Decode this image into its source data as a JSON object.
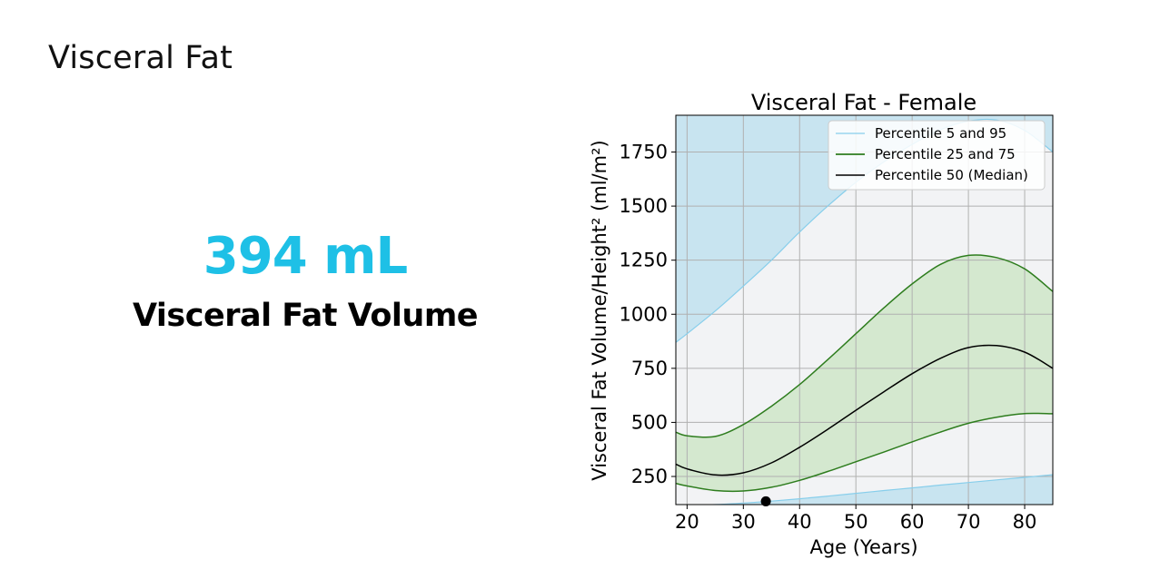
{
  "page": {
    "title": "Visceral Fat"
  },
  "metric": {
    "value": "394 mL",
    "label": "Visceral Fat Volume",
    "value_color": "#1ec0e6"
  },
  "chart_data": {
    "type": "area",
    "title": "Visceral Fat - Female",
    "xlabel": "Age (Years)",
    "ylabel": "Visceral Fat Volume/Height² (ml/m²)",
    "xlim": [
      18,
      85
    ],
    "ylim": [
      120,
      1920
    ],
    "xticks": [
      20,
      30,
      40,
      50,
      60,
      70,
      80
    ],
    "yticks": [
      250,
      500,
      750,
      1000,
      1250,
      1500,
      1750
    ],
    "grid": true,
    "legend_position": "top-right",
    "legend": [
      {
        "label": "Percentile 5 and 95",
        "color": "#87ceeb"
      },
      {
        "label": "Percentile 25 and 75",
        "color": "#2e7d1e"
      },
      {
        "label": "Percentile 50 (Median)",
        "color": "#000000"
      }
    ],
    "colors": {
      "band_5_95": "#c8e4f0",
      "band_25_75": "#d4e8cf",
      "background": "#f2f3f5",
      "line_5_95": "#87ceeb",
      "line_25_75": "#2e7d1e",
      "median": "#000000",
      "marker": "#000000"
    },
    "x": [
      18,
      20,
      25,
      30,
      35,
      40,
      45,
      50,
      55,
      60,
      65,
      70,
      75,
      80,
      85
    ],
    "series": [
      {
        "name": "Percentile 5 and 95",
        "values": [
          112,
          114,
          120,
          127,
          136,
          147,
          159,
          172,
          185,
          197,
          210,
          222,
          234,
          246,
          258
        ]
      },
      {
        "name": "Percentile 25 and 75",
        "values": [
          218,
          206,
          185,
          183,
          200,
          232,
          273,
          318,
          363,
          410,
          455,
          496,
          524,
          541,
          540
        ]
      },
      {
        "name": "Percentile 50 (Median)",
        "values": [
          307,
          285,
          257,
          267,
          313,
          385,
          468,
          556,
          642,
          725,
          796,
          846,
          855,
          825,
          750
        ]
      },
      {
        "name": "Percentile 25 and 75",
        "values": [
          455,
          438,
          435,
          490,
          575,
          675,
          790,
          910,
          1030,
          1140,
          1230,
          1272,
          1262,
          1210,
          1105
        ]
      },
      {
        "name": "Percentile 5 and 95",
        "values": [
          870,
          910,
          1015,
          1130,
          1250,
          1380,
          1500,
          1610,
          1705,
          1785,
          1853,
          1893,
          1898,
          1850,
          1750
        ]
      }
    ],
    "marker": {
      "x": 34,
      "y": 135
    }
  }
}
